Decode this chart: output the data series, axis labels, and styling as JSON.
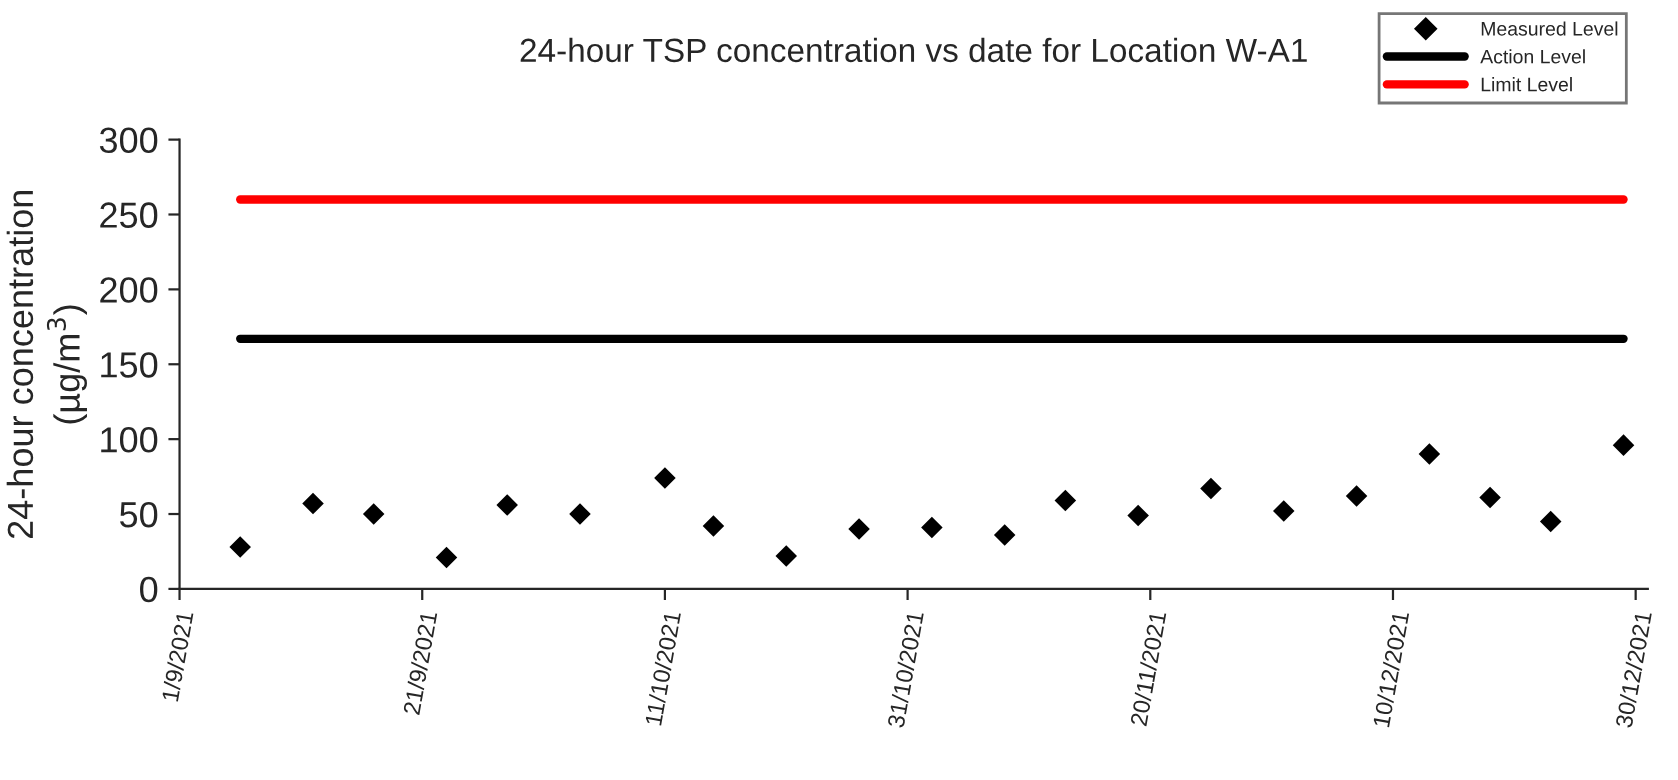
{
  "chart_data": {
    "type": "scatter",
    "title": "24-hour TSP concentration vs date for Location W-A1",
    "ylabel": "24-hour concentration\n(µg/m$^{3}$)",
    "xlim": [
      "2021-09-01",
      "2021-12-31"
    ],
    "xticks": [
      {
        "value": "2021-09-01",
        "label": "1/9/2021"
      },
      {
        "value": "2021-09-21",
        "label": "21/9/2021"
      },
      {
        "value": "2021-10-11",
        "label": "11/10/2021"
      },
      {
        "value": "2021-10-31",
        "label": "31/10/2021"
      },
      {
        "value": "2021-11-20",
        "label": "20/11/2021"
      },
      {
        "value": "2021-12-10",
        "label": "10/12/2021"
      },
      {
        "value": "2021-12-30",
        "label": "30/12/2021"
      }
    ],
    "ylim": [
      0,
      300
    ],
    "yticks": [
      0,
      50,
      100,
      150,
      200,
      250,
      300
    ],
    "grid": false,
    "legend": "top right",
    "series": [
      {
        "name": "Measured Level",
        "marker": "diamond",
        "color": "#000000",
        "x": [
          "2021-09-06",
          "2021-09-12",
          "2021-09-17",
          "2021-09-23",
          "2021-09-28",
          "2021-10-04",
          "2021-10-11",
          "2021-10-15",
          "2021-10-21",
          "2021-10-27",
          "2021-11-02",
          "2021-11-08",
          "2021-11-13",
          "2021-11-19",
          "2021-11-25",
          "2021-12-01",
          "2021-12-07",
          "2021-12-13",
          "2021-12-18",
          "2021-12-23",
          "2021-12-29"
        ],
        "values": [
          28,
          57,
          50,
          21,
          56,
          50,
          74,
          42,
          22,
          40,
          41,
          36,
          59,
          49,
          67,
          52,
          62,
          90,
          61,
          45,
          96
        ]
      },
      {
        "name": "Action Level",
        "type": "line",
        "line_style": "solid",
        "color": "#000000",
        "x": [
          "2021-09-06",
          "2021-12-29"
        ],
        "values": [
          167,
          167
        ]
      },
      {
        "name": "Limit Level",
        "type": "line",
        "line_style": "solid",
        "color": "#ff0000",
        "x": [
          "2021-09-06",
          "2021-12-29"
        ],
        "values": [
          260,
          260
        ]
      }
    ]
  }
}
